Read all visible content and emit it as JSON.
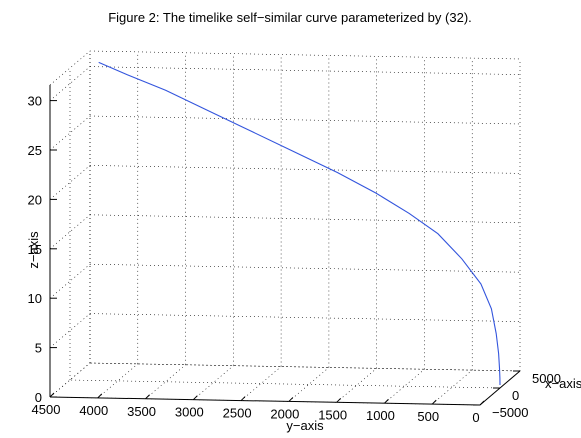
{
  "chart_data": {
    "type": "line",
    "title": "Figure 2: The timelike self−similar curve parameterized by (32).",
    "xlabel": "x−axis",
    "ylabel": "y−axis",
    "zlabel": "z−axis",
    "view": "3d",
    "grid": true,
    "x_range": [
      -5000,
      5000
    ],
    "y_range": [
      0,
      4500
    ],
    "z_range": [
      0,
      30
    ],
    "x_ticks": [
      -5000,
      0,
      5000
    ],
    "x_tick_labels": [
      "−5000",
      "0",
      "5000"
    ],
    "y_ticks": [
      4500,
      4000,
      3500,
      3000,
      2500,
      2000,
      1500,
      1000,
      500,
      0
    ],
    "y_tick_labels": [
      "4500",
      "4000",
      "3500",
      "3000",
      "2500",
      "2000",
      "1500",
      "1000",
      "500",
      "0"
    ],
    "z_ticks": [
      0,
      5,
      10,
      15,
      20,
      25,
      30
    ],
    "z_tick_labels": [
      "0",
      "5",
      "10",
      "15",
      "20",
      "25",
      "30"
    ],
    "line_color": "#3355dd",
    "series": [
      {
        "x": [
          0,
          0,
          0,
          0,
          0,
          0,
          0,
          0,
          0,
          0,
          0,
          0,
          0,
          0,
          0,
          0,
          0,
          0
        ],
        "y": [
          0,
          1,
          5,
          15,
          40,
          90,
          200,
          400,
          650,
          950,
          1300,
          1700,
          2150,
          2600,
          3050,
          3500,
          3900,
          4200
        ],
        "z": [
          0.3,
          1.0,
          2.0,
          3.5,
          5.5,
          8.0,
          10.5,
          13.0,
          15.5,
          17.5,
          19.5,
          21.5,
          23.5,
          25.5,
          27.5,
          29.5,
          31.0,
          32.2
        ]
      }
    ]
  }
}
